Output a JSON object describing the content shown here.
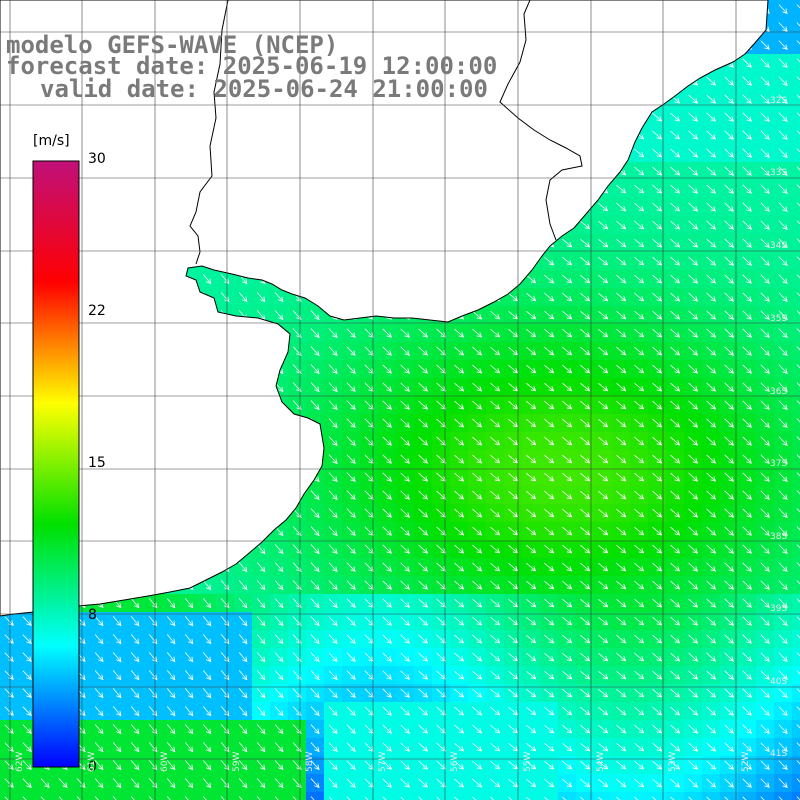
{
  "title": {
    "line1": "modelo GEFS-WAVE (NCEP)",
    "line2": "forecast date: 2025-06-19 12:00:00",
    "line3": "valid date: 2025-06-24 21:00:00"
  },
  "colorbar": {
    "unit": "[m/s]",
    "ticks": [
      "30",
      "22",
      "15",
      "8",
      "0"
    ],
    "min": 0,
    "max": 30,
    "colors": [
      "#0000ff",
      "#00ffff",
      "#00e000",
      "#ffff00",
      "#ff0000",
      "#c0107a"
    ]
  },
  "map": {
    "land_color": "#ffffff",
    "grid_color": "#404040",
    "arrow_color": "#ffffff",
    "lat_labels": [
      "32S",
      "33S",
      "34S",
      "35S",
      "36S",
      "37S",
      "38S",
      "39S",
      "40S",
      "41S"
    ],
    "lon_labels": [
      "62W",
      "61W",
      "60W",
      "59W",
      "58W",
      "57W",
      "56W",
      "55W",
      "54W",
      "53W",
      "52W"
    ]
  }
}
